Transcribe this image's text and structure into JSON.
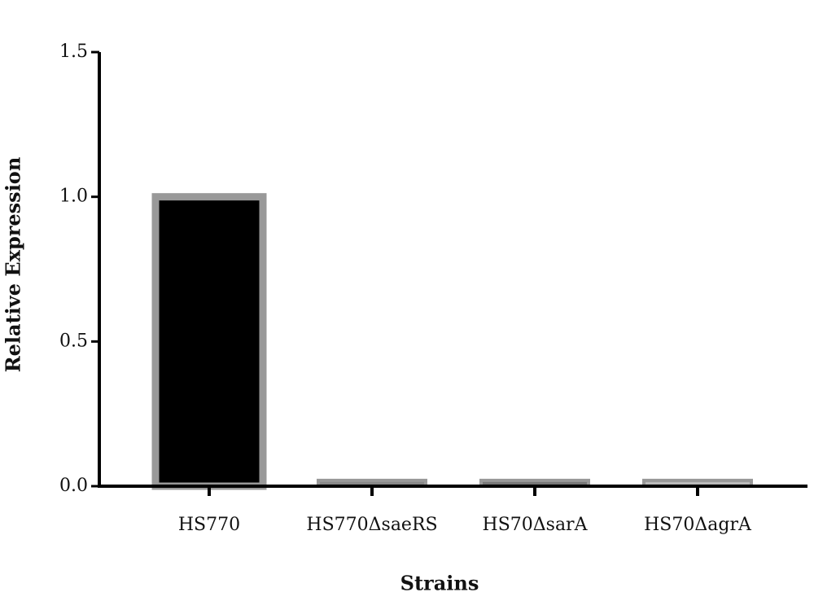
{
  "chart_data": {
    "type": "bar",
    "x_label": "Strains",
    "y_label": "Relative Expression",
    "categories": [
      "HS770",
      "HS770ΔsaeRS",
      "HS70ΔsarA",
      "HS70ΔagrA"
    ],
    "values": [
      1.0,
      0.02,
      0.02,
      0.02
    ],
    "colors": [
      "#000000",
      "#888888",
      "#777777",
      "#bbbbbb"
    ],
    "edgecolor": "#999999",
    "ylim": [
      0,
      1.5
    ],
    "yticks": [
      {
        "value": 0,
        "label": "0.0"
      },
      0.5,
      {
        "value": 1,
        "label": "1.0"
      },
      1.5
    ],
    "grid": false
  }
}
